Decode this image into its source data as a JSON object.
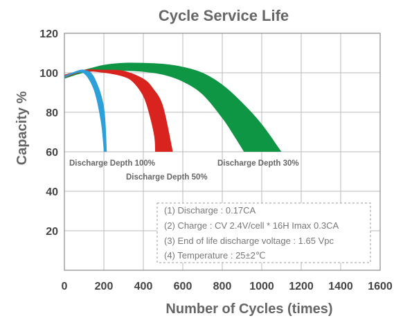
{
  "chart_data": {
    "type": "area",
    "title": "Cycle Service Life",
    "xlabel": "Number of Cycles (times)",
    "ylabel": "Capacity %",
    "xlim": [
      0,
      1600
    ],
    "ylim": [
      0,
      120
    ],
    "x_ticks": [
      0,
      200,
      400,
      600,
      800,
      1000,
      1200,
      1400,
      1600
    ],
    "y_ticks": [
      20,
      40,
      60,
      80,
      100,
      120
    ],
    "y_tick_labels_shown": [
      20,
      40,
      60,
      80,
      100,
      120
    ],
    "grid": true,
    "series": [
      {
        "name": "Discharge Depth 30%",
        "color": "#0E9645",
        "upper": [
          [
            0,
            99
          ],
          [
            100,
            101.5
          ],
          [
            200,
            104
          ],
          [
            300,
            105
          ],
          [
            400,
            105
          ],
          [
            500,
            104.5
          ],
          [
            600,
            103
          ],
          [
            700,
            100
          ],
          [
            800,
            94
          ],
          [
            900,
            85
          ],
          [
            1000,
            74
          ],
          [
            1100,
            60
          ]
        ],
        "lower": [
          [
            0,
            97
          ],
          [
            100,
            100
          ],
          [
            200,
            101
          ],
          [
            300,
            101
          ],
          [
            400,
            100.5
          ],
          [
            500,
            99
          ],
          [
            600,
            95.5
          ],
          [
            700,
            89
          ],
          [
            800,
            77
          ],
          [
            860,
            68
          ],
          [
            910,
            60
          ]
        ]
      },
      {
        "name": "Discharge Depth 50%",
        "color": "#D8231E",
        "upper": [
          [
            0,
            99
          ],
          [
            100,
            101.5
          ],
          [
            200,
            101.5
          ],
          [
            300,
            101
          ],
          [
            400,
            97
          ],
          [
            450,
            92
          ],
          [
            500,
            83
          ],
          [
            550,
            60
          ]
        ],
        "lower": [
          [
            0,
            97.5
          ],
          [
            100,
            100.5
          ],
          [
            200,
            100
          ],
          [
            300,
            98
          ],
          [
            350,
            95
          ],
          [
            400,
            88
          ],
          [
            430,
            79
          ],
          [
            455,
            68
          ],
          [
            460,
            60
          ]
        ]
      },
      {
        "name": "Discharge Depth 100%",
        "color": "#2D9FD9",
        "upper": [
          [
            0,
            98.5
          ],
          [
            50,
            100.5
          ],
          [
            100,
            101.5
          ],
          [
            150,
            98
          ],
          [
            200,
            83
          ],
          [
            215,
            60
          ]
        ],
        "lower": [
          [
            0,
            97.5
          ],
          [
            50,
            99.5
          ],
          [
            100,
            99.5
          ],
          [
            150,
            91
          ],
          [
            185,
            75
          ],
          [
            200,
            60
          ]
        ]
      }
    ],
    "annotations": {
      "labels": [
        "Discharge Depth 100%",
        "Discharge Depth 50%",
        "Discharge Depth 30%"
      ],
      "notes": [
        "(1) Discharge : 0.17CA",
        "(2) Charge : CV 2.4V/cell * 16H Imax 0.3CA",
        "(3) End of life discharge voltage : 1.65 Vpc",
        "(4) Temperature : 25±2℃"
      ]
    }
  }
}
